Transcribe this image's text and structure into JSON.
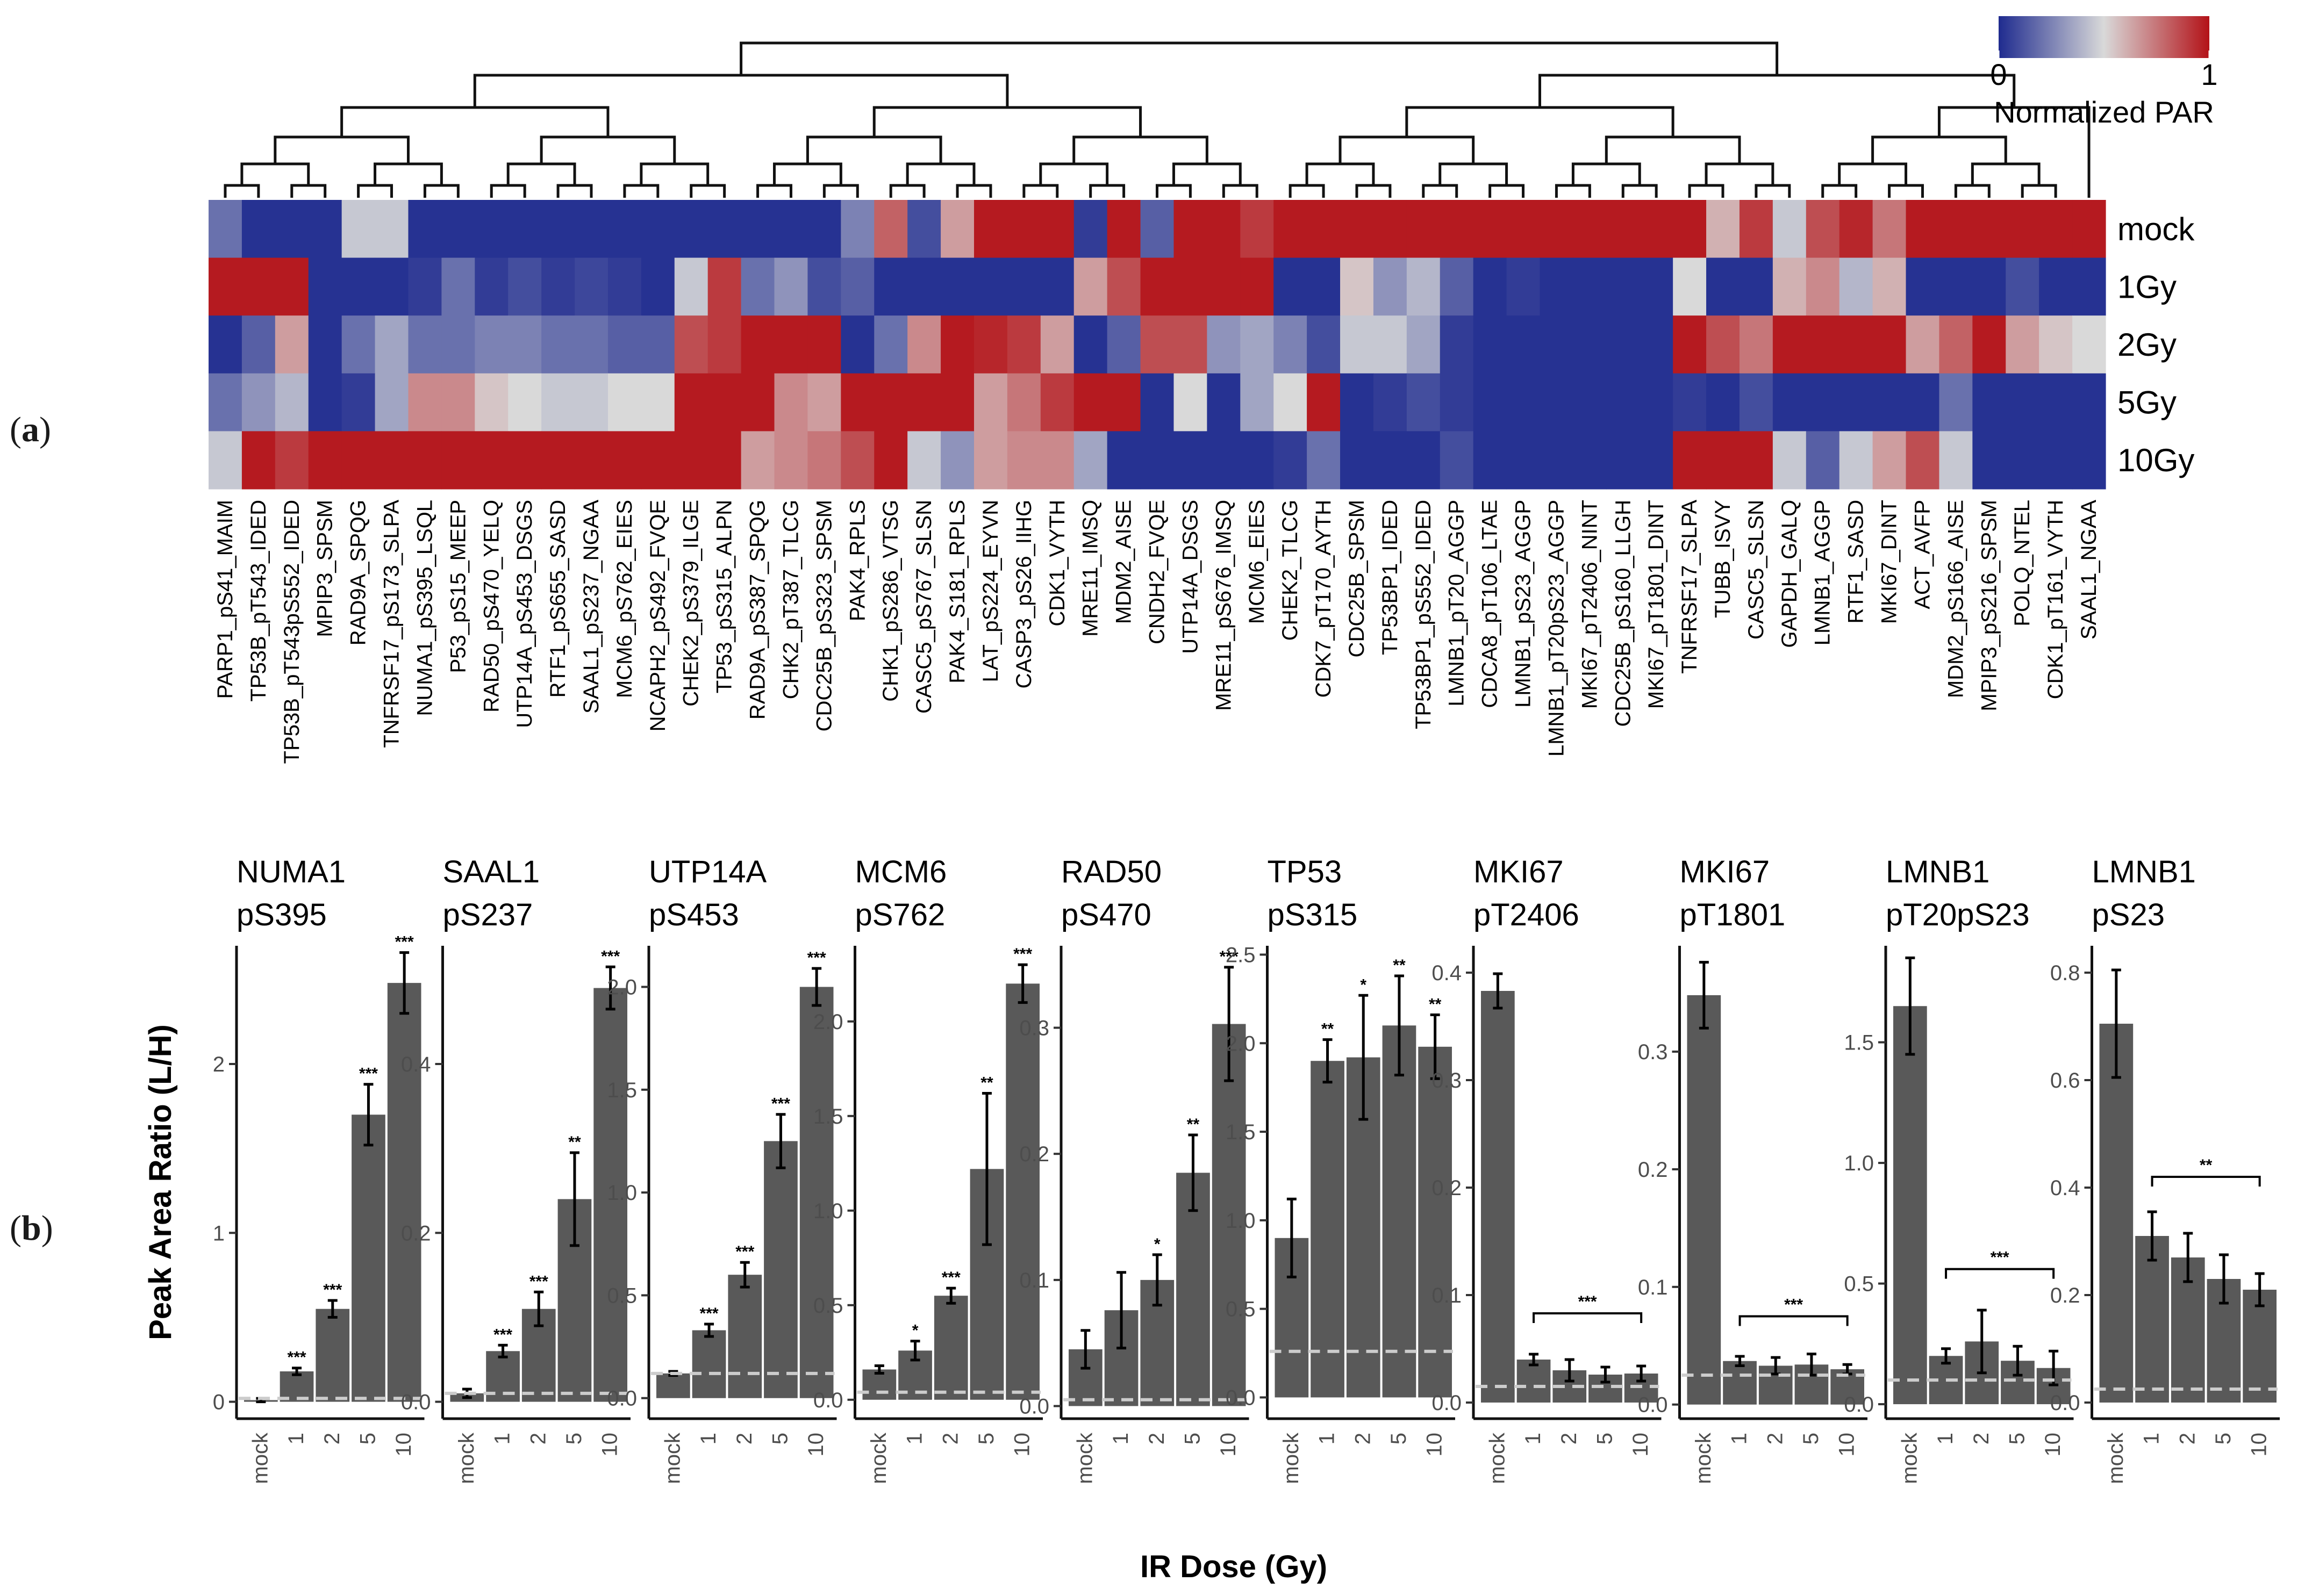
{
  "panel_labels": {
    "a": "a",
    "b": "b"
  },
  "chart_data": [
    {
      "type": "heatmap",
      "rows": [
        "mock",
        "1Gy",
        "2Gy",
        "5Gy",
        "10Gy"
      ],
      "columns": [
        "PARP1_pS41_MAIM",
        "TP53B_pT543_IDED",
        "TP53B_pT543pS552_IDED",
        "MPIP3_SPSM",
        "RAD9A_SPQG",
        "TNFRSF17_pS173_SLPA",
        "NUMA1_pS395_LSQL",
        "P53_pS15_MEEP",
        "RAD50_pS470_YELQ",
        "UTP14A_pS453_DSGS",
        "RTF1_pS655_SASD",
        "SAAL1_pS237_NGAA",
        "MCM6_pS762_EIES",
        "NCAPH2_pS492_FVQE",
        "CHEK2_pS379_ILGE",
        "TP53_pS315_ALPN",
        "RAD9A_pS387_SPQG",
        "CHK2_pT387_TLCG",
        "CDC25B_pS323_SPSM",
        "PAK4_RPLS",
        "CHK1_pS286_VTSG",
        "CASC5_pS767_SLSN",
        "PAK4_S181_RPLS",
        "LAT_pS224_EYVN",
        "CASP3_pS26_IIHG",
        "CDK1_VYTH",
        "MRE11_IMSQ",
        "MDM2_AISE",
        "CNDH2_FVQE",
        "UTP14A_DSGS",
        "MRE11_pS676_IMSQ",
        "MCM6_EIES",
        "CHEK2_TLCG",
        "CDK7_pT170_AYTH",
        "CDC25B_SPSM",
        "TP53BP1_IDED",
        "TP53BP1_pS552_IDED",
        "LMNB1_pT20_AGGP",
        "CDCA8_pT106_LTAE",
        "LMNB1_pS23_AGGP",
        "LMNB1_pT20pS23_AGGP",
        "MKI67_pT2406_NINT",
        "CDC25B_pS160_LLGH",
        "MKI67_pT1801_DINT",
        "TNFRSF17_SLPA",
        "TUBB_ISVY",
        "CASC5_SLSN",
        "GAPDH_GALQ",
        "LMNB1_AGGP",
        "RTF1_SASD",
        "MKI67_DINT",
        "ACT_AVFP",
        "MDM2_pS166_AISE",
        "MPIP3_pS216_SPSM",
        "POLQ_NTEL",
        "CDK1_pT161_VYTH",
        "SAAL1_NGAA"
      ],
      "values": [
        [
          0.2,
          0.02,
          0.02,
          0.02,
          0.45,
          0.45,
          0.02,
          0.02,
          0.02,
          0.02,
          0.02,
          0.02,
          0.02,
          0.02,
          0.02,
          0.02,
          0.02,
          0.02,
          0.02,
          0.25,
          0.8,
          0.1,
          0.65,
          0.98,
          0.98,
          0.98,
          0.05,
          0.98,
          0.15,
          0.98,
          0.98,
          0.9,
          0.98,
          0.98,
          0.98,
          0.98,
          0.98,
          0.98,
          0.98,
          0.98,
          0.98,
          0.98,
          0.98,
          0.98,
          0.98,
          0.6,
          0.9,
          0.45,
          0.85,
          0.95,
          0.75,
          0.98,
          0.98,
          0.98,
          0.98,
          0.98,
          0.98
        ],
        [
          0.98,
          0.98,
          0.98,
          0.02,
          0.02,
          0.02,
          0.05,
          0.2,
          0.05,
          0.1,
          0.05,
          0.08,
          0.05,
          0.02,
          0.45,
          0.9,
          0.2,
          0.3,
          0.1,
          0.15,
          0.02,
          0.02,
          0.02,
          0.02,
          0.02,
          0.02,
          0.65,
          0.85,
          0.98,
          0.98,
          0.98,
          0.98,
          0.02,
          0.02,
          0.55,
          0.3,
          0.4,
          0.15,
          0.02,
          0.05,
          0.02,
          0.02,
          0.02,
          0.02,
          0.5,
          0.02,
          0.02,
          0.6,
          0.7,
          0.4,
          0.6,
          0.02,
          0.02,
          0.02,
          0.1,
          0.02,
          0.02
        ],
        [
          0.02,
          0.15,
          0.65,
          0.02,
          0.2,
          0.35,
          0.2,
          0.2,
          0.25,
          0.25,
          0.2,
          0.2,
          0.15,
          0.15,
          0.85,
          0.9,
          0.98,
          0.98,
          0.98,
          0.02,
          0.2,
          0.7,
          0.98,
          0.95,
          0.9,
          0.65,
          0.02,
          0.15,
          0.85,
          0.85,
          0.3,
          0.35,
          0.25,
          0.1,
          0.45,
          0.45,
          0.35,
          0.05,
          0.02,
          0.02,
          0.02,
          0.02,
          0.02,
          0.02,
          0.98,
          0.85,
          0.75,
          0.98,
          0.98,
          0.98,
          0.98,
          0.65,
          0.8,
          0.98,
          0.65,
          0.55,
          0.5
        ],
        [
          0.2,
          0.3,
          0.4,
          0.02,
          0.05,
          0.35,
          0.7,
          0.7,
          0.55,
          0.5,
          0.45,
          0.45,
          0.5,
          0.5,
          0.98,
          0.98,
          0.98,
          0.7,
          0.65,
          0.98,
          0.98,
          0.98,
          0.98,
          0.65,
          0.75,
          0.9,
          0.98,
          0.98,
          0.02,
          0.5,
          0.02,
          0.35,
          0.5,
          0.98,
          0.02,
          0.05,
          0.1,
          0.05,
          0.02,
          0.02,
          0.02,
          0.02,
          0.02,
          0.02,
          0.05,
          0.02,
          0.1,
          0.02,
          0.02,
          0.02,
          0.02,
          0.02,
          0.2,
          0.02,
          0.02,
          0.02,
          0.02
        ],
        [
          0.45,
          0.98,
          0.9,
          0.98,
          0.98,
          0.98,
          0.98,
          0.98,
          0.98,
          0.98,
          0.98,
          0.98,
          0.98,
          0.98,
          0.98,
          0.98,
          0.65,
          0.7,
          0.75,
          0.85,
          0.98,
          0.45,
          0.3,
          0.65,
          0.7,
          0.7,
          0.35,
          0.02,
          0.02,
          0.02,
          0.02,
          0.02,
          0.05,
          0.2,
          0.02,
          0.02,
          0.02,
          0.1,
          0.02,
          0.02,
          0.02,
          0.02,
          0.02,
          0.02,
          0.98,
          0.98,
          0.98,
          0.45,
          0.15,
          0.45,
          0.65,
          0.85,
          0.45,
          0.02,
          0.02,
          0.02,
          0.02
        ]
      ],
      "colorbar": {
        "min_label": "0",
        "max_label": "1",
        "title": "Normalized PAR",
        "range": [
          0,
          1
        ],
        "colors": [
          "#1f2b8f",
          "#d9d9d9",
          "#b31218"
        ]
      }
    },
    {
      "type": "bar",
      "title": "NUMA1 pS395",
      "categories": [
        "mock",
        "1",
        "2",
        "5",
        "10"
      ],
      "values": [
        0.01,
        0.18,
        0.55,
        1.7,
        2.48
      ],
      "errors": [
        0.01,
        0.02,
        0.05,
        0.18,
        0.18
      ],
      "significance": [
        "",
        "***",
        "***",
        "***",
        "***"
      ],
      "yticks": [
        0,
        1,
        2
      ],
      "ylim": [
        -0.1,
        2.7
      ],
      "baseline": 0.02
    },
    {
      "type": "bar",
      "title": "SAAL1 pS237",
      "categories": [
        "mock",
        "1",
        "2",
        "5",
        "10"
      ],
      "values": [
        0.01,
        0.06,
        0.11,
        0.24,
        0.49
      ],
      "errors": [
        0.005,
        0.007,
        0.02,
        0.055,
        0.025
      ],
      "significance": [
        "",
        "***",
        "***",
        "**",
        "***"
      ],
      "yticks": [
        0,
        0.2,
        0.4
      ],
      "ylim": [
        -0.02,
        0.54
      ],
      "baseline": 0.01
    },
    {
      "type": "bar",
      "title": "UTP14A pS453",
      "categories": [
        "mock",
        "1",
        "2",
        "5",
        "10"
      ],
      "values": [
        0.12,
        0.33,
        0.6,
        1.25,
        2.0
      ],
      "errors": [
        0.01,
        0.03,
        0.06,
        0.13,
        0.09
      ],
      "significance": [
        "",
        "***",
        "***",
        "***",
        "***"
      ],
      "yticks": [
        0,
        0.5,
        1.0,
        1.5,
        2.0
      ],
      "ylim": [
        -0.1,
        2.2
      ],
      "baseline": 0.12
    },
    {
      "type": "bar",
      "title": "MCM6 pS762",
      "categories": [
        "mock",
        "1",
        "2",
        "5",
        "10"
      ],
      "values": [
        0.16,
        0.26,
        0.55,
        1.22,
        2.2
      ],
      "errors": [
        0.02,
        0.05,
        0.04,
        0.4,
        0.1
      ],
      "significance": [
        "",
        "*",
        "***",
        "**",
        "***"
      ],
      "yticks": [
        0,
        0.5,
        1.0,
        1.5,
        2.0
      ],
      "ylim": [
        -0.1,
        2.4
      ],
      "baseline": 0.04
    },
    {
      "type": "bar",
      "title": "RAD50 pS470",
      "categories": [
        "mock",
        "1",
        "2",
        "5",
        "10"
      ],
      "values": [
        0.045,
        0.076,
        0.1,
        0.185,
        0.303
      ],
      "errors": [
        0.015,
        0.03,
        0.02,
        0.03,
        0.045
      ],
      "significance": [
        "",
        "",
        "*",
        "**",
        "***"
      ],
      "yticks": [
        0,
        0.1,
        0.2,
        0.3
      ],
      "ylim": [
        -0.01,
        0.365
      ],
      "baseline": 0.005
    },
    {
      "type": "bar",
      "title": "TP53 pS315",
      "categories": [
        "mock",
        "1",
        "2",
        "5",
        "10"
      ],
      "values": [
        0.9,
        1.9,
        1.92,
        2.1,
        1.98
      ],
      "errors": [
        0.22,
        0.12,
        0.35,
        0.28,
        0.18
      ],
      "significance": [
        "",
        "**",
        "*",
        "**",
        "**"
      ],
      "yticks": [
        0,
        0.5,
        1.0,
        1.5,
        2.0,
        2.5
      ],
      "ylim": [
        -0.12,
        2.55
      ],
      "baseline": 0.26
    },
    {
      "type": "bar",
      "title": "MKI67 pT2406",
      "categories": [
        "mock",
        "1",
        "2",
        "5",
        "10"
      ],
      "values": [
        0.383,
        0.04,
        0.03,
        0.026,
        0.027
      ],
      "errors": [
        0.016,
        0.005,
        0.01,
        0.007,
        0.007
      ],
      "significance": [
        "",
        "",
        "",
        "",
        ""
      ],
      "bracket": {
        "label": "***",
        "from": 1,
        "to": 4,
        "y": 0.083
      },
      "yticks": [
        0,
        0.1,
        0.2,
        0.3,
        0.4
      ],
      "ylim": [
        -0.015,
        0.425
      ],
      "baseline": 0.015
    },
    {
      "type": "bar",
      "title": "MKI67 pT1801",
      "categories": [
        "mock",
        "1",
        "2",
        "5",
        "10"
      ],
      "values": [
        0.348,
        0.037,
        0.033,
        0.034,
        0.03
      ],
      "errors": [
        0.028,
        0.004,
        0.007,
        0.009,
        0.004
      ],
      "significance": [
        "",
        "",
        "",
        "",
        ""
      ],
      "bracket": {
        "label": "***",
        "from": 1,
        "to": 4,
        "y": 0.075
      },
      "yticks": [
        0,
        0.1,
        0.2,
        0.3
      ],
      "ylim": [
        -0.012,
        0.39
      ],
      "baseline": 0.025
    },
    {
      "type": "bar",
      "title": "LMNB1 pT20pS23",
      "categories": [
        "mock",
        "1",
        "2",
        "5",
        "10"
      ],
      "values": [
        1.65,
        0.2,
        0.26,
        0.18,
        0.15
      ],
      "errors": [
        0.2,
        0.03,
        0.13,
        0.06,
        0.07
      ],
      "significance": [
        "",
        "",
        "",
        "",
        ""
      ],
      "bracket": {
        "label": "***",
        "from": 1,
        "to": 4,
        "y": 0.56
      },
      "yticks": [
        0,
        0.5,
        1.0,
        1.5
      ],
      "ylim": [
        -0.06,
        1.9
      ],
      "baseline": 0.1
    },
    {
      "type": "bar",
      "title": "LMNB1 pS23",
      "categories": [
        "mock",
        "1",
        "2",
        "5",
        "10"
      ],
      "values": [
        0.705,
        0.31,
        0.27,
        0.23,
        0.21
      ],
      "errors": [
        0.1,
        0.045,
        0.045,
        0.045,
        0.03
      ],
      "significance": [
        "",
        "",
        "",
        "",
        ""
      ],
      "bracket": {
        "label": "**",
        "from": 1,
        "to": 4,
        "y": 0.42
      },
      "yticks": [
        0,
        0.2,
        0.4,
        0.6,
        0.8
      ],
      "ylim": [
        -0.03,
        0.85
      ],
      "baseline": 0.025
    }
  ],
  "bar_axis": {
    "ylabel": "Peak Area Ratio (L/H)",
    "xlabel": "IR Dose (Gy)",
    "bar_color": "#595959",
    "baseline_color": "#cccccc"
  }
}
